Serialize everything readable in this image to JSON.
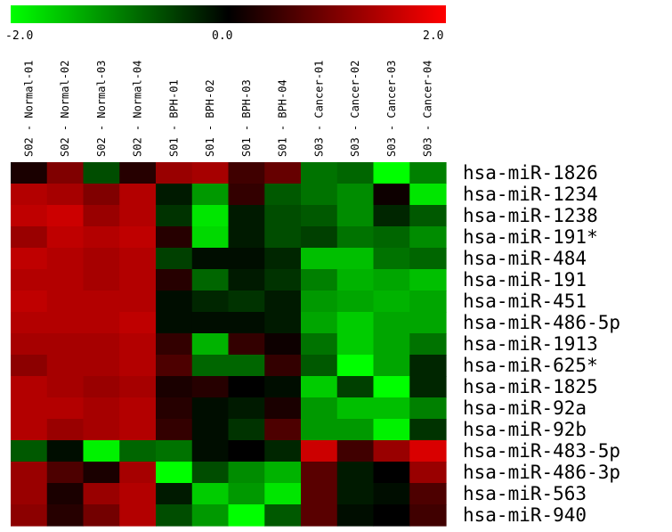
{
  "chart_data": {
    "type": "heatmap",
    "color_scale": {
      "min_label": "-2.0",
      "mid_label": "0.0",
      "max_label": "2.0",
      "min": -2.0,
      "max": 2.0,
      "low_color": "#00ff00",
      "mid_color": "#000000",
      "high_color": "#ff0000"
    },
    "columns": [
      "S02 - Normal-01",
      "S02 - Normal-02",
      "S02 - Normal-03",
      "S02 - Normal-04",
      "S01 - BPH-01",
      "S01 - BPH-02",
      "S01 - BPH-03",
      "S01 - BPH-04",
      "S03 - Cancer-01",
      "S03 - Cancer-02",
      "S03 - Cancer-03",
      "S03 - Cancer-04"
    ],
    "rows": [
      "hsa-miR-1826",
      "hsa-miR-1234",
      "hsa-miR-1238",
      "hsa-miR-191*",
      "hsa-miR-484",
      "hsa-miR-191",
      "hsa-miR-451",
      "hsa-miR-486-5p",
      "hsa-miR-1913",
      "hsa-miR-625*",
      "hsa-miR-1825",
      "hsa-miR-92a",
      "hsa-miR-92b",
      "hsa-miR-483-5p",
      "hsa-miR-486-3p",
      "hsa-miR-563",
      "hsa-miR-940"
    ],
    "values": [
      [
        0.2,
        1.0,
        -0.6,
        0.3,
        1.2,
        1.3,
        0.5,
        0.8,
        -0.9,
        -0.8,
        -2.0,
        -1.0
      ],
      [
        1.4,
        1.3,
        1.0,
        1.4,
        -0.2,
        -1.2,
        0.4,
        -0.7,
        -0.9,
        -1.1,
        0.1,
        -1.8
      ],
      [
        1.5,
        1.6,
        1.2,
        1.4,
        -0.4,
        -1.8,
        -0.2,
        -0.6,
        -0.7,
        -1.1,
        -0.3,
        -0.7
      ],
      [
        1.2,
        1.5,
        1.4,
        1.5,
        0.3,
        -1.7,
        -0.2,
        -0.6,
        -0.5,
        -0.9,
        -0.8,
        -1.1
      ],
      [
        1.5,
        1.4,
        1.3,
        1.4,
        -0.5,
        -0.1,
        -0.1,
        -0.3,
        -1.5,
        -1.5,
        -0.9,
        -0.8
      ],
      [
        1.4,
        1.4,
        1.3,
        1.4,
        0.3,
        -0.8,
        -0.2,
        -0.4,
        -1.0,
        -1.4,
        -1.3,
        -1.5
      ],
      [
        1.5,
        1.4,
        1.4,
        1.4,
        -0.1,
        -0.3,
        -0.4,
        -0.2,
        -1.2,
        -1.3,
        -1.4,
        -1.3
      ],
      [
        1.4,
        1.4,
        1.4,
        1.5,
        -0.1,
        -0.1,
        -0.1,
        -0.2,
        -1.3,
        -1.6,
        -1.3,
        -1.3
      ],
      [
        1.3,
        1.3,
        1.3,
        1.4,
        0.4,
        -1.4,
        0.4,
        0.1,
        -0.9,
        -1.6,
        -1.3,
        -0.9
      ],
      [
        1.1,
        1.3,
        1.3,
        1.4,
        0.6,
        -0.8,
        -0.8,
        0.4,
        -0.7,
        -2.0,
        -1.3,
        -0.3
      ],
      [
        1.4,
        1.3,
        1.2,
        1.3,
        0.2,
        0.3,
        0.0,
        -0.1,
        -1.6,
        -0.5,
        -2.0,
        -0.3
      ],
      [
        1.4,
        1.4,
        1.3,
        1.4,
        0.3,
        -0.1,
        -0.2,
        0.2,
        -1.2,
        -1.5,
        -1.5,
        -1.0
      ],
      [
        1.4,
        1.2,
        1.3,
        1.4,
        0.4,
        -0.1,
        -0.4,
        0.6,
        -1.2,
        -1.2,
        -1.9,
        -0.4
      ],
      [
        -0.7,
        -0.1,
        -1.9,
        -0.8,
        -0.9,
        -0.1,
        0.0,
        -0.3,
        1.6,
        0.5,
        1.2,
        1.7
      ],
      [
        1.2,
        0.6,
        0.2,
        1.3,
        -2.0,
        -0.6,
        -1.1,
        -1.4,
        0.7,
        -0.2,
        0.0,
        1.2
      ],
      [
        1.2,
        0.2,
        1.2,
        1.4,
        -0.2,
        -1.6,
        -1.2,
        -1.8,
        0.7,
        -0.2,
        -0.1,
        0.6
      ],
      [
        1.1,
        0.3,
        0.9,
        1.4,
        -0.6,
        -1.2,
        -2.0,
        -0.7,
        0.7,
        -0.1,
        0.0,
        0.5
      ]
    ]
  }
}
